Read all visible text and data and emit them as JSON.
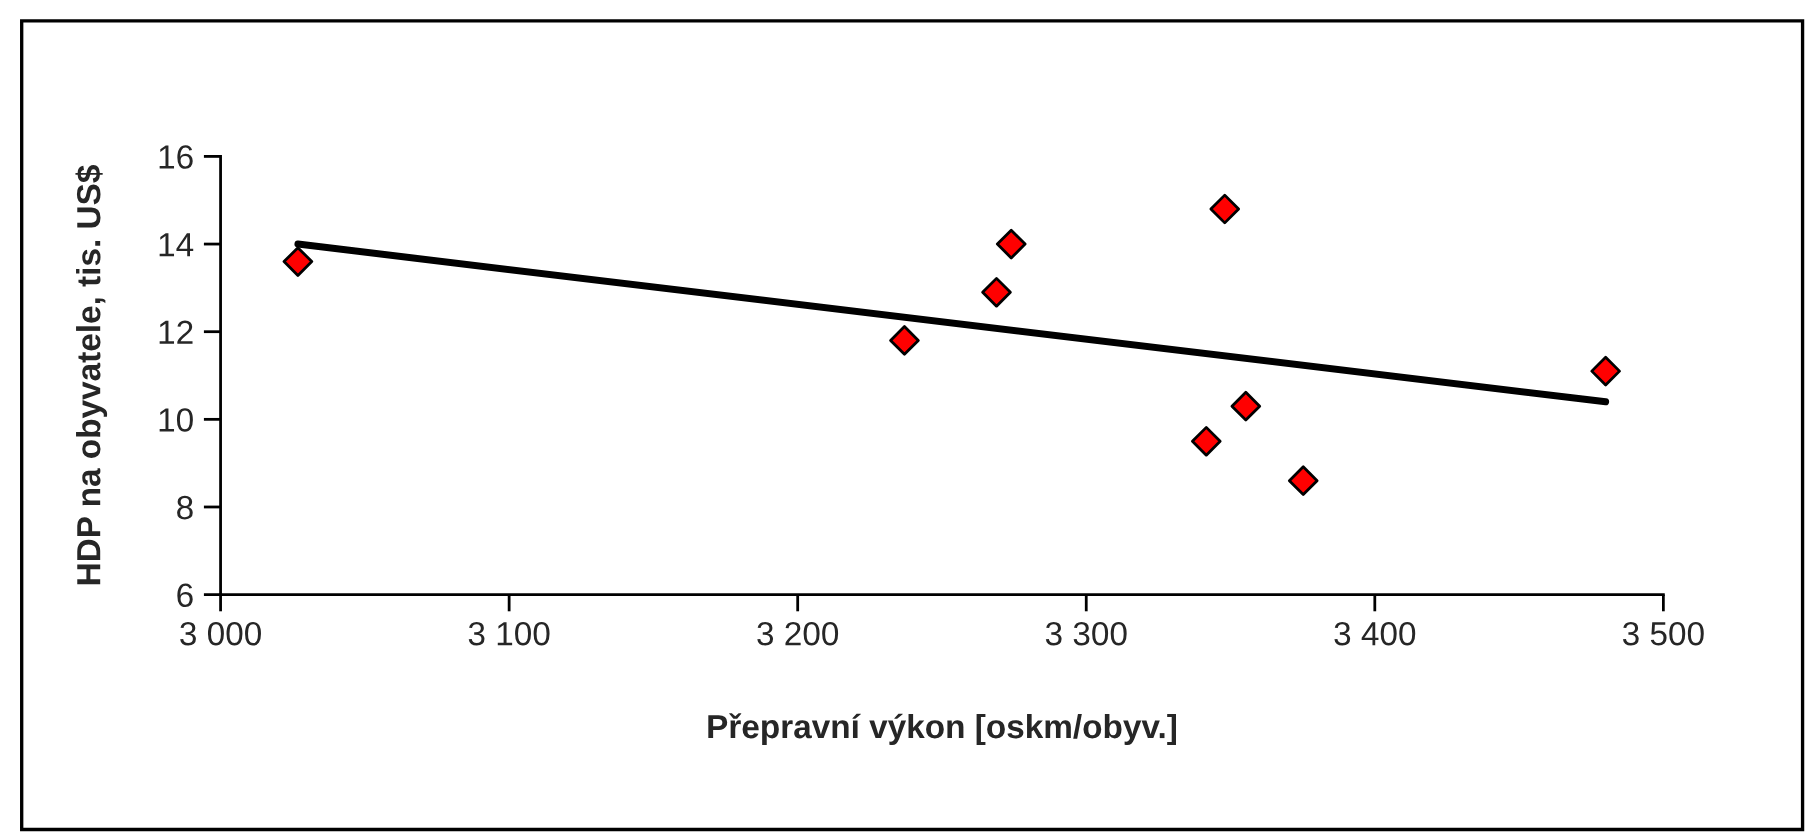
{
  "chart_data": {
    "type": "scatter",
    "xlabel": "Přepravní výkon [oskm/obyv.]",
    "ylabel": "HDP na obyvatele, tis. US$",
    "xlim": [
      3000,
      3500
    ],
    "xticks": [
      {
        "value": 3000,
        "label": "3 000"
      },
      {
        "value": 3100,
        "label": "3 100"
      },
      {
        "value": 3200,
        "label": "3 200"
      },
      {
        "value": 3300,
        "label": "3 300"
      },
      {
        "value": 3400,
        "label": "3 400"
      },
      {
        "value": 3500,
        "label": "3 500"
      }
    ],
    "ylim": [
      6,
      16
    ],
    "yticks": [
      6,
      8,
      10,
      12,
      14,
      16
    ],
    "grid": false,
    "legend": false,
    "marker": "diamond",
    "series": [
      {
        "color": "#ff0000",
        "x": [
          3026.8,
          3237,
          3268.9,
          3274,
          3348,
          3341.6,
          3355.3,
          3375.2,
          3480
        ],
        "values": [
          13.6,
          11.8,
          12.9,
          14.0,
          14.8,
          9.5,
          10.3,
          8.6,
          11.1
        ]
      },
      {
        "type": "line",
        "color": "#000000",
        "line_style": "solid",
        "marker": "none",
        "x": [
          3026.8,
          3480
        ],
        "values": [
          14.0,
          10.4
        ]
      }
    ]
  }
}
